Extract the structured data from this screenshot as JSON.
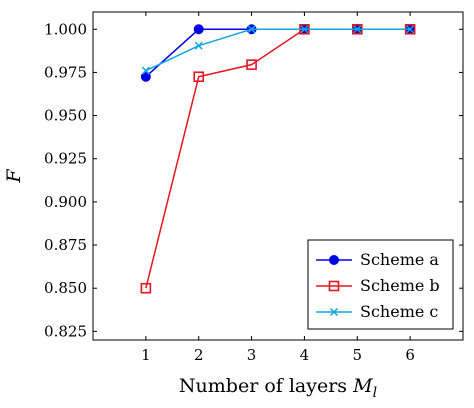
{
  "chart_data": {
    "type": "line",
    "title": "",
    "xlabel": "Number of layers ",
    "xlabel_symbol": "M",
    "xlabel_subscript": "l",
    "ylabel": "F",
    "x": [
      1,
      2,
      3,
      4,
      5,
      6
    ],
    "xlim": [
      0,
      7
    ],
    "ylim": [
      0.82,
      1.01
    ],
    "x_ticks": [
      "1",
      "2",
      "3",
      "4",
      "5",
      "6"
    ],
    "y_ticks": [
      "0.825",
      "0.850",
      "0.875",
      "0.900",
      "0.925",
      "0.950",
      "0.975",
      "1.000"
    ],
    "grid": false,
    "legend_position": "bottom-right",
    "series": [
      {
        "name": "Scheme a",
        "color": "#0000e6",
        "marker": "circle",
        "values": [
          0.9725,
          1.0,
          1.0,
          1.0,
          1.0,
          1.0
        ]
      },
      {
        "name": "Scheme b",
        "color": "#e6141e",
        "marker": "square",
        "values": [
          0.85,
          0.9725,
          0.9795,
          1.0,
          1.0,
          1.0
        ]
      },
      {
        "name": "Scheme c",
        "color": "#15a6e0",
        "marker": "x",
        "values": [
          0.976,
          0.9905,
          1.0,
          1.0,
          1.0,
          1.0
        ]
      }
    ]
  }
}
